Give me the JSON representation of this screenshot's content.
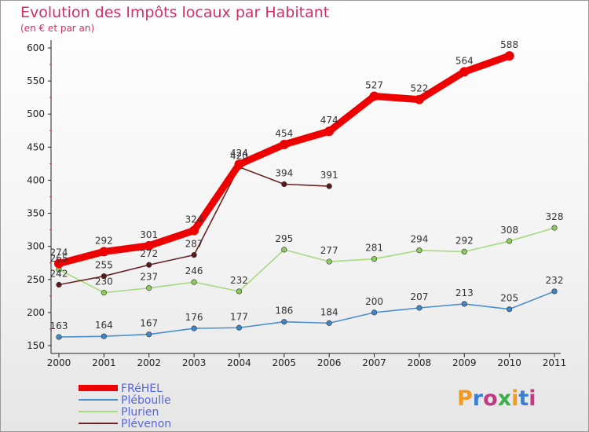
{
  "chart_data": {
    "type": "line",
    "title": "Evolution des Impôts locaux par Habitant",
    "subtitle": "(en € et par an)",
    "x": [
      "2000",
      "2001",
      "2002",
      "2003",
      "2004",
      "2005",
      "2006",
      "2007",
      "2008",
      "2009",
      "2010",
      "2011"
    ],
    "ylim": [
      150,
      600
    ],
    "yticks": [
      "150",
      "200",
      "250",
      "300",
      "350",
      "400",
      "450",
      "500",
      "550",
      "600"
    ],
    "grid": false,
    "legend_position": "bottom-left",
    "series": [
      {
        "name": "Pléboulle",
        "color": "#4b8fcc",
        "marker": "#3f86c8",
        "values": [
          163,
          164,
          167,
          176,
          177,
          186,
          184,
          200,
          207,
          213,
          205,
          232
        ]
      },
      {
        "name": "Plurien",
        "color": "#a6db7e",
        "marker": "#8ccc5e",
        "values": [
          265,
          230,
          237,
          246,
          232,
          295,
          277,
          281,
          294,
          292,
          308,
          328
        ]
      },
      {
        "name": "Plévenon",
        "color": "#6b2222",
        "marker": "#5a1a1a",
        "values": [
          242,
          255,
          272,
          287,
          420,
          394,
          391,
          null,
          null,
          null,
          null,
          null
        ]
      },
      {
        "name": "FRéHEL",
        "color": "#ee0000",
        "marker": "#ee0000",
        "values": [
          274,
          292,
          301,
          324,
          424,
          454,
          474,
          527,
          522,
          564,
          588,
          null
        ]
      }
    ],
    "legend_order": [
      "FRéHEL",
      "Pléboulle",
      "Plurien",
      "Plévenon"
    ],
    "point_labels": {
      "FRéHEL": [
        "274",
        "292",
        "301",
        "324",
        "424",
        "454",
        "474",
        "527",
        "522",
        "564",
        "588",
        ""
      ],
      "Pléboulle": [
        "163",
        "164",
        "167",
        "176",
        "177",
        "186",
        "184",
        "200",
        "207",
        "213",
        "205",
        "232"
      ],
      "Plurien": [
        "265",
        "230",
        "237",
        "246",
        "232",
        "295",
        "277",
        "281",
        "294",
        "292",
        "308",
        "328"
      ],
      "Plévenon": [
        "242",
        "255",
        "272",
        "287",
        "420",
        "394",
        "391",
        "",
        "",
        "",
        "",
        ""
      ]
    }
  },
  "logo": {
    "text": "Proxiti",
    "colors": [
      "#f39a1f",
      "#3a7fd4",
      "#c23a86",
      "#3aae4a"
    ]
  }
}
